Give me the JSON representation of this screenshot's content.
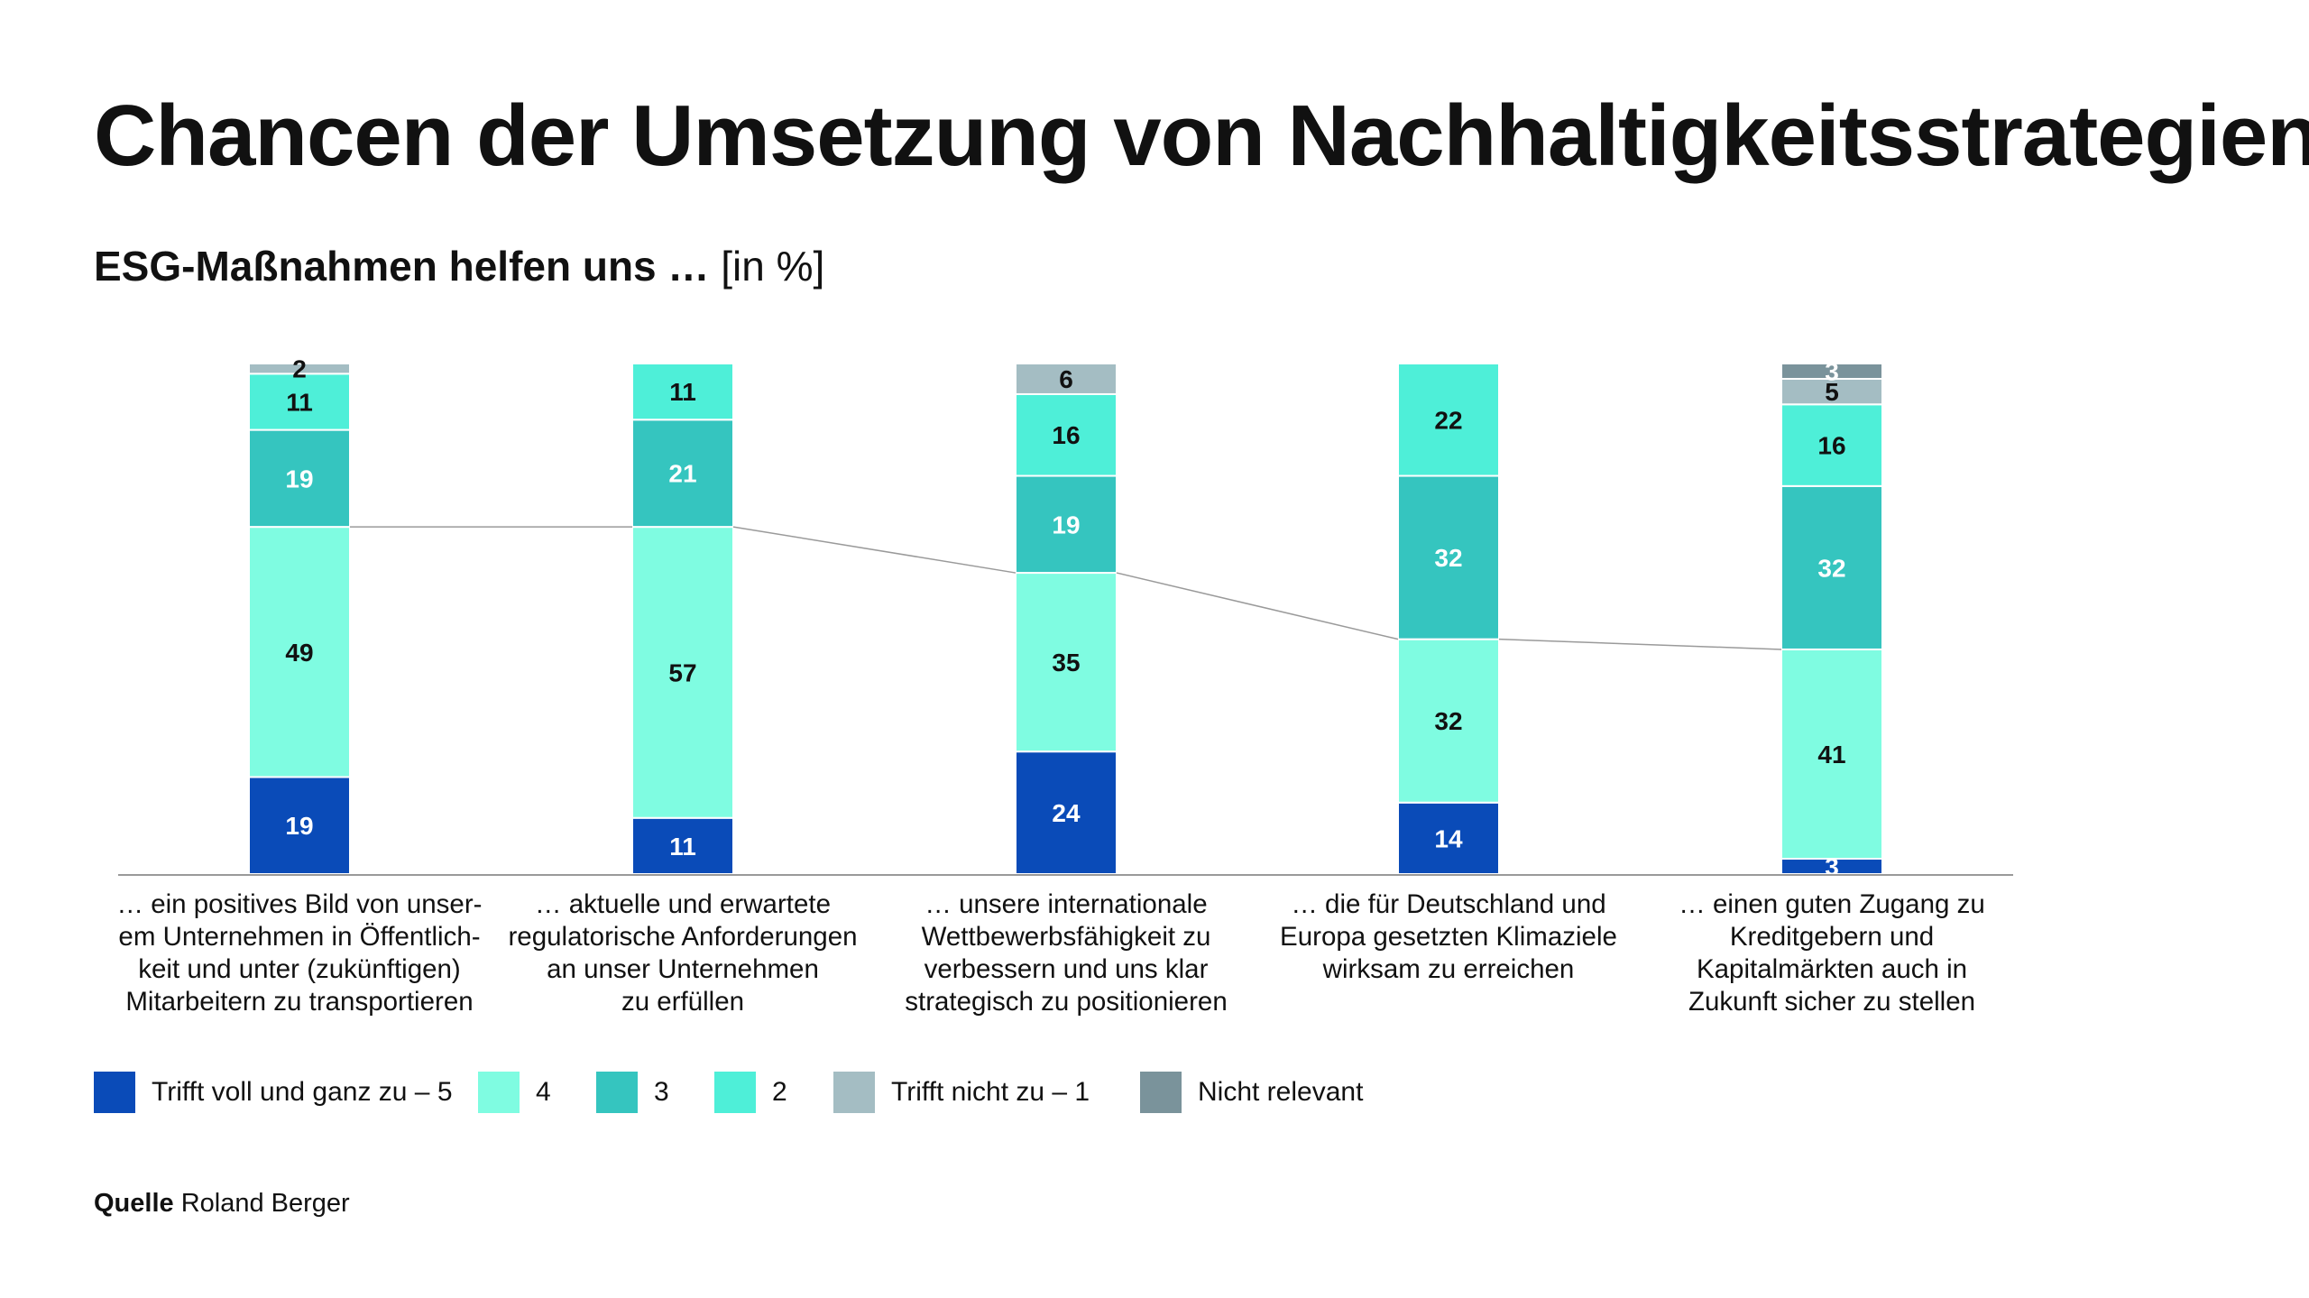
{
  "title": "Chancen der Umsetzung von Nachhaltigkeitsstrategien",
  "subtitle": {
    "bold": "ESG-Maßnahmen helfen uns …",
    "unit": "[in %]"
  },
  "source": {
    "label": "Quelle",
    "text": "Roland Berger"
  },
  "colors": {
    "level5": "#0A4BB8",
    "level4": "#7FFCE1",
    "level3": "#35C5BF",
    "level2": "#4EEFD8",
    "level1": "#A4BDC3",
    "nicht_relevant": "#7A939B",
    "axis": "#999999",
    "connector": "#9a9a9a"
  },
  "chart_data": {
    "type": "bar",
    "stacked": true,
    "categories": [
      "… ein positives Bild von unser-\nem Unternehmen in Öffentlich-\nkeit und unter (zukünftigen)\nMitarbeitern zu transportieren",
      "… aktuelle und erwartete\nregulatorische Anforderungen\nan unser Unternehmen\nzu erfüllen",
      "… unsere internationale\nWettbewerbsfähigkeit zu\nverbessern und uns klar\nstrategisch zu positionieren",
      "… die für Deutschland und\nEuropa gesetzten Klimaziele\nwirksam zu erreichen",
      "… einen guten Zugang zu\nKreditgebern und\nKapitalmärkten auch in\nZukunft sicher zu stellen"
    ],
    "series": [
      {
        "name": "Trifft voll und ganz zu – 5",
        "colorKey": "level5",
        "values": [
          19,
          11,
          24,
          14,
          3
        ]
      },
      {
        "name": "4",
        "colorKey": "level4",
        "values": [
          49,
          57,
          35,
          32,
          41
        ]
      },
      {
        "name": "3",
        "colorKey": "level3",
        "values": [
          19,
          21,
          19,
          32,
          32
        ]
      },
      {
        "name": "2",
        "colorKey": "level2",
        "values": [
          11,
          11,
          16,
          22,
          16
        ]
      },
      {
        "name": "Trifft nicht zu – 1",
        "colorKey": "level1",
        "values": [
          2,
          0,
          6,
          0,
          5
        ]
      },
      {
        "name": "Nicht relevant",
        "colorKey": "nicht_relevant",
        "values": [
          0,
          0,
          0,
          0,
          3
        ]
      }
    ],
    "ylim": [
      0,
      100
    ],
    "grid": false,
    "legend_position": "bottom"
  }
}
